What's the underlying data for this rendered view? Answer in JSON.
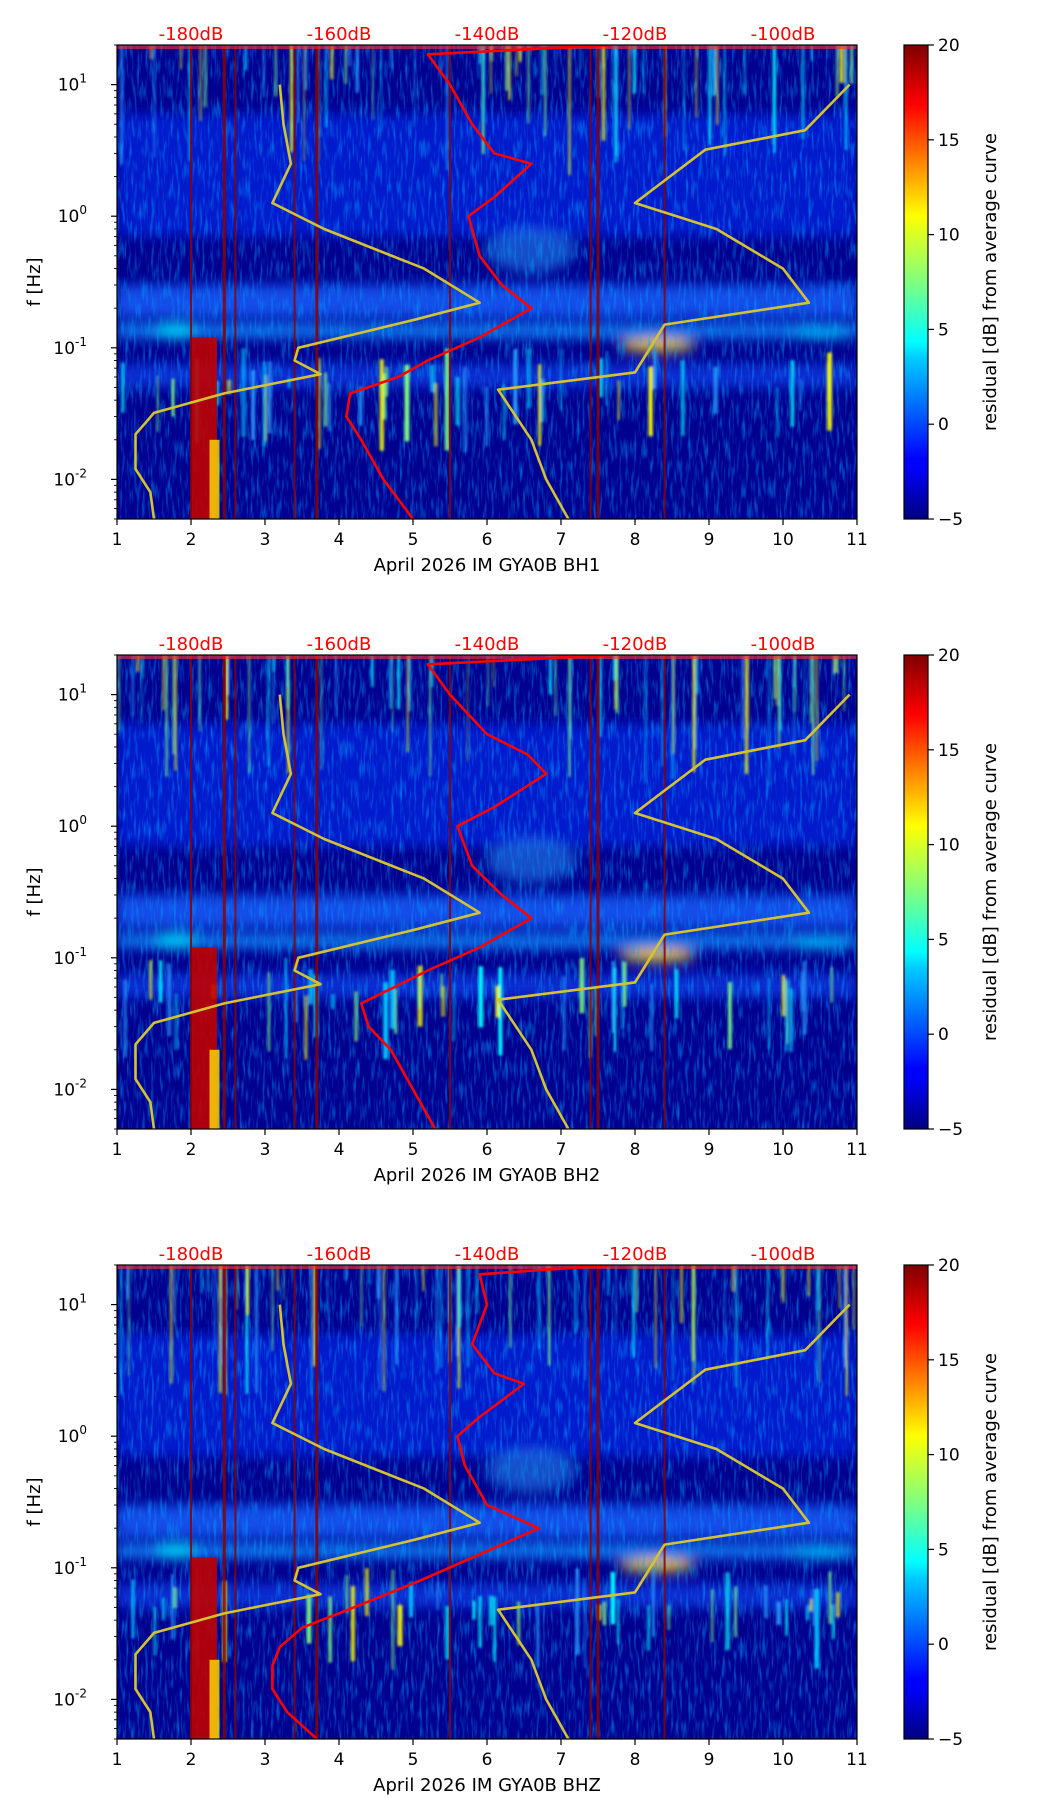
{
  "chart_data": [
    {
      "type": "heatmap",
      "xlabel": "April 2026 IM GYA0B  BH1",
      "ylabel": "f [Hz]",
      "colorbar_label": "residual [dB] from average curve",
      "xlim": [
        1,
        11
      ],
      "ylim": [
        0.005,
        20
      ],
      "y_scale": "log",
      "x_ticks": [
        "1",
        "2",
        "3",
        "4",
        "5",
        "6",
        "7",
        "8",
        "9",
        "10",
        "11"
      ],
      "y_ticks": [
        {
          "base": "10",
          "exp": "-2"
        },
        {
          "base": "10",
          "exp": "-1"
        },
        {
          "base": "10",
          "exp": "0"
        },
        {
          "base": "10",
          "exp": "1"
        }
      ],
      "colorbar_range": [
        -5,
        20
      ],
      "colorbar_ticks": [
        "20",
        "15",
        "10",
        "5",
        "0",
        "−5"
      ],
      "top_scale_labels": [
        "-180dB",
        "-160dB",
        "-140dB",
        "-120dB",
        "-100dB"
      ],
      "event_lines_x": [
        2.0,
        2.45,
        2.6,
        3.4,
        3.7,
        5.5,
        7.4,
        7.5,
        8.4
      ],
      "series": [
        {
          "color": "#d4c232",
          "freqs": [
            0.005,
            0.008,
            0.012,
            0.022,
            0.032,
            0.045,
            0.063,
            0.08,
            0.1,
            0.165,
            0.22,
            0.4,
            0.8,
            1.26,
            2.5,
            5,
            10
          ],
          "x": [
            1.5,
            1.45,
            1.25,
            1.25,
            1.5,
            2.45,
            3.75,
            3.4,
            3.45,
            5.05,
            5.9,
            5.15,
            3.8,
            3.1,
            3.35,
            3.25,
            3.2
          ]
        },
        {
          "color": "#d4c232",
          "freqs": [
            0.005,
            0.01,
            0.02,
            0.048,
            0.065,
            0.15,
            0.22,
            0.4,
            0.8,
            1.26,
            3.2,
            4.5,
            10
          ],
          "x": [
            7.1,
            6.8,
            6.6,
            6.15,
            8.0,
            8.4,
            10.35,
            10.0,
            9.1,
            8.0,
            8.95,
            10.3,
            10.9
          ]
        },
        {
          "color": "#ff0000",
          "freqs": [
            0.005,
            0.01,
            0.02,
            0.03,
            0.045,
            0.06,
            0.08,
            0.12,
            0.2,
            0.3,
            0.5,
            1.0,
            1.4,
            2.5,
            3,
            5,
            10,
            17,
            20
          ],
          "x": [
            5.0,
            4.6,
            4.3,
            4.1,
            4.15,
            4.8,
            5.2,
            5.9,
            6.6,
            6.2,
            5.9,
            5.75,
            6.1,
            6.6,
            6.1,
            5.8,
            5.5,
            5.2,
            7.7
          ]
        }
      ]
    },
    {
      "type": "heatmap",
      "xlabel": "April 2026 IM GYA0B  BH2",
      "ylabel": "f [Hz]",
      "colorbar_label": "residual [dB] from average curve",
      "xlim": [
        1,
        11
      ],
      "ylim": [
        0.005,
        20
      ],
      "y_scale": "log",
      "x_ticks": [
        "1",
        "2",
        "3",
        "4",
        "5",
        "6",
        "7",
        "8",
        "9",
        "10",
        "11"
      ],
      "y_ticks": [
        {
          "base": "10",
          "exp": "-2"
        },
        {
          "base": "10",
          "exp": "-1"
        },
        {
          "base": "10",
          "exp": "0"
        },
        {
          "base": "10",
          "exp": "1"
        }
      ],
      "colorbar_range": [
        -5,
        20
      ],
      "colorbar_ticks": [
        "20",
        "15",
        "10",
        "5",
        "0",
        "−5"
      ],
      "top_scale_labels": [
        "-180dB",
        "-160dB",
        "-140dB",
        "-120dB",
        "-100dB"
      ],
      "event_lines_x": [
        2.0,
        2.45,
        2.6,
        3.4,
        3.7,
        5.5,
        7.4,
        7.5,
        8.4
      ],
      "series": [
        {
          "color": "#d4c232",
          "freqs": [
            0.005,
            0.008,
            0.012,
            0.022,
            0.032,
            0.045,
            0.063,
            0.08,
            0.1,
            0.165,
            0.22,
            0.4,
            0.8,
            1.26,
            2.5,
            5,
            10
          ],
          "x": [
            1.5,
            1.45,
            1.25,
            1.25,
            1.5,
            2.45,
            3.75,
            3.4,
            3.45,
            5.05,
            5.9,
            5.15,
            3.8,
            3.1,
            3.35,
            3.25,
            3.2
          ]
        },
        {
          "color": "#d4c232",
          "freqs": [
            0.005,
            0.01,
            0.02,
            0.048,
            0.065,
            0.15,
            0.22,
            0.4,
            0.8,
            1.26,
            3.2,
            4.5,
            10
          ],
          "x": [
            7.1,
            6.8,
            6.6,
            6.15,
            8.0,
            8.4,
            10.35,
            10.0,
            9.1,
            8.0,
            8.95,
            10.3,
            10.9
          ]
        },
        {
          "color": "#ff0000",
          "freqs": [
            0.005,
            0.01,
            0.02,
            0.03,
            0.045,
            0.06,
            0.08,
            0.12,
            0.2,
            0.3,
            0.5,
            1.0,
            1.4,
            2.5,
            3.5,
            5,
            10,
            17,
            20
          ],
          "x": [
            5.3,
            5.0,
            4.7,
            4.4,
            4.3,
            4.75,
            5.2,
            5.9,
            6.6,
            6.2,
            5.8,
            5.6,
            6.1,
            6.8,
            6.55,
            6.0,
            5.5,
            5.2,
            7.7
          ]
        }
      ]
    },
    {
      "type": "heatmap",
      "xlabel": "April 2026 IM GYA0B  BHZ",
      "ylabel": "f [Hz]",
      "colorbar_label": "residual [dB] from average curve",
      "xlim": [
        1,
        11
      ],
      "ylim": [
        0.005,
        20
      ],
      "y_scale": "log",
      "x_ticks": [
        "1",
        "2",
        "3",
        "4",
        "5",
        "6",
        "7",
        "8",
        "9",
        "10",
        "11"
      ],
      "y_ticks": [
        {
          "base": "10",
          "exp": "-2"
        },
        {
          "base": "10",
          "exp": "-1"
        },
        {
          "base": "10",
          "exp": "0"
        },
        {
          "base": "10",
          "exp": "1"
        }
      ],
      "colorbar_range": [
        -5,
        20
      ],
      "colorbar_ticks": [
        "20",
        "15",
        "10",
        "5",
        "0",
        "−5"
      ],
      "top_scale_labels": [
        "-180dB",
        "-160dB",
        "-140dB",
        "-120dB",
        "-100dB"
      ],
      "event_lines_x": [
        2.0,
        2.45,
        2.6,
        3.4,
        3.7,
        5.5,
        7.4,
        7.5,
        8.4
      ],
      "series": [
        {
          "color": "#d4c232",
          "freqs": [
            0.005,
            0.008,
            0.012,
            0.022,
            0.032,
            0.045,
            0.063,
            0.08,
            0.1,
            0.165,
            0.22,
            0.4,
            0.8,
            1.26,
            2.5,
            5,
            10
          ],
          "x": [
            1.5,
            1.45,
            1.25,
            1.25,
            1.5,
            2.45,
            3.75,
            3.4,
            3.45,
            5.05,
            5.9,
            5.15,
            3.8,
            3.1,
            3.35,
            3.25,
            3.2
          ]
        },
        {
          "color": "#d4c232",
          "freqs": [
            0.005,
            0.01,
            0.02,
            0.048,
            0.065,
            0.15,
            0.22,
            0.4,
            0.8,
            1.26,
            3.2,
            4.5,
            10
          ],
          "x": [
            7.1,
            6.8,
            6.6,
            6.15,
            8.0,
            8.4,
            10.35,
            10.0,
            9.1,
            8.0,
            8.95,
            10.3,
            10.9
          ]
        },
        {
          "color": "#ff0000",
          "freqs": [
            0.005,
            0.008,
            0.012,
            0.018,
            0.025,
            0.035,
            0.05,
            0.08,
            0.15,
            0.2,
            0.3,
            0.6,
            1.0,
            1.4,
            2.5,
            3,
            5,
            10,
            17,
            20
          ],
          "x": [
            3.7,
            3.3,
            3.1,
            3.1,
            3.2,
            3.5,
            4.2,
            5.1,
            6.2,
            6.7,
            6.0,
            5.7,
            5.6,
            5.9,
            6.5,
            6.1,
            5.8,
            6.0,
            5.9,
            7.7
          ]
        }
      ]
    }
  ]
}
